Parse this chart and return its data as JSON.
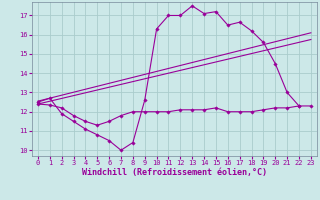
{
  "background_color": "#cce8e8",
  "grid_color": "#aacccc",
  "line_color": "#990099",
  "xlim": [
    -0.5,
    23.5
  ],
  "ylim": [
    9.7,
    17.7
  ],
  "yticks": [
    10,
    11,
    12,
    13,
    14,
    15,
    16,
    17
  ],
  "xticks": [
    0,
    1,
    2,
    3,
    4,
    5,
    6,
    7,
    8,
    9,
    10,
    11,
    12,
    13,
    14,
    15,
    16,
    17,
    18,
    19,
    20,
    21,
    22,
    23
  ],
  "xlabel": "Windchill (Refroidissement éolien,°C)",
  "line1_x": [
    0,
    1,
    2,
    3,
    4,
    5,
    6,
    7,
    8,
    9,
    10,
    11,
    12,
    13,
    14,
    15,
    16,
    17,
    18,
    19,
    20,
    21,
    22
  ],
  "line1_y": [
    12.5,
    12.7,
    11.9,
    11.5,
    11.1,
    10.8,
    10.5,
    10.0,
    10.4,
    12.6,
    16.3,
    17.0,
    17.0,
    17.5,
    17.1,
    17.2,
    16.5,
    16.65,
    16.2,
    15.6,
    14.5,
    13.0,
    12.3
  ],
  "line2_x": [
    0,
    1,
    2,
    3,
    4,
    5,
    6,
    7,
    8,
    9,
    10,
    11,
    12,
    13,
    14,
    15,
    16,
    17,
    18,
    19,
    20,
    21,
    22,
    23
  ],
  "line2_y": [
    12.4,
    12.35,
    12.2,
    11.8,
    11.5,
    11.3,
    11.5,
    11.8,
    12.0,
    12.0,
    12.0,
    12.0,
    12.1,
    12.1,
    12.1,
    12.2,
    12.0,
    12.0,
    12.0,
    12.1,
    12.2,
    12.2,
    12.3,
    12.3
  ],
  "line3_x": [
    0,
    23
  ],
  "line3_y": [
    12.4,
    15.75
  ],
  "line4_x": [
    0,
    23
  ],
  "line4_y": [
    12.55,
    16.1
  ]
}
